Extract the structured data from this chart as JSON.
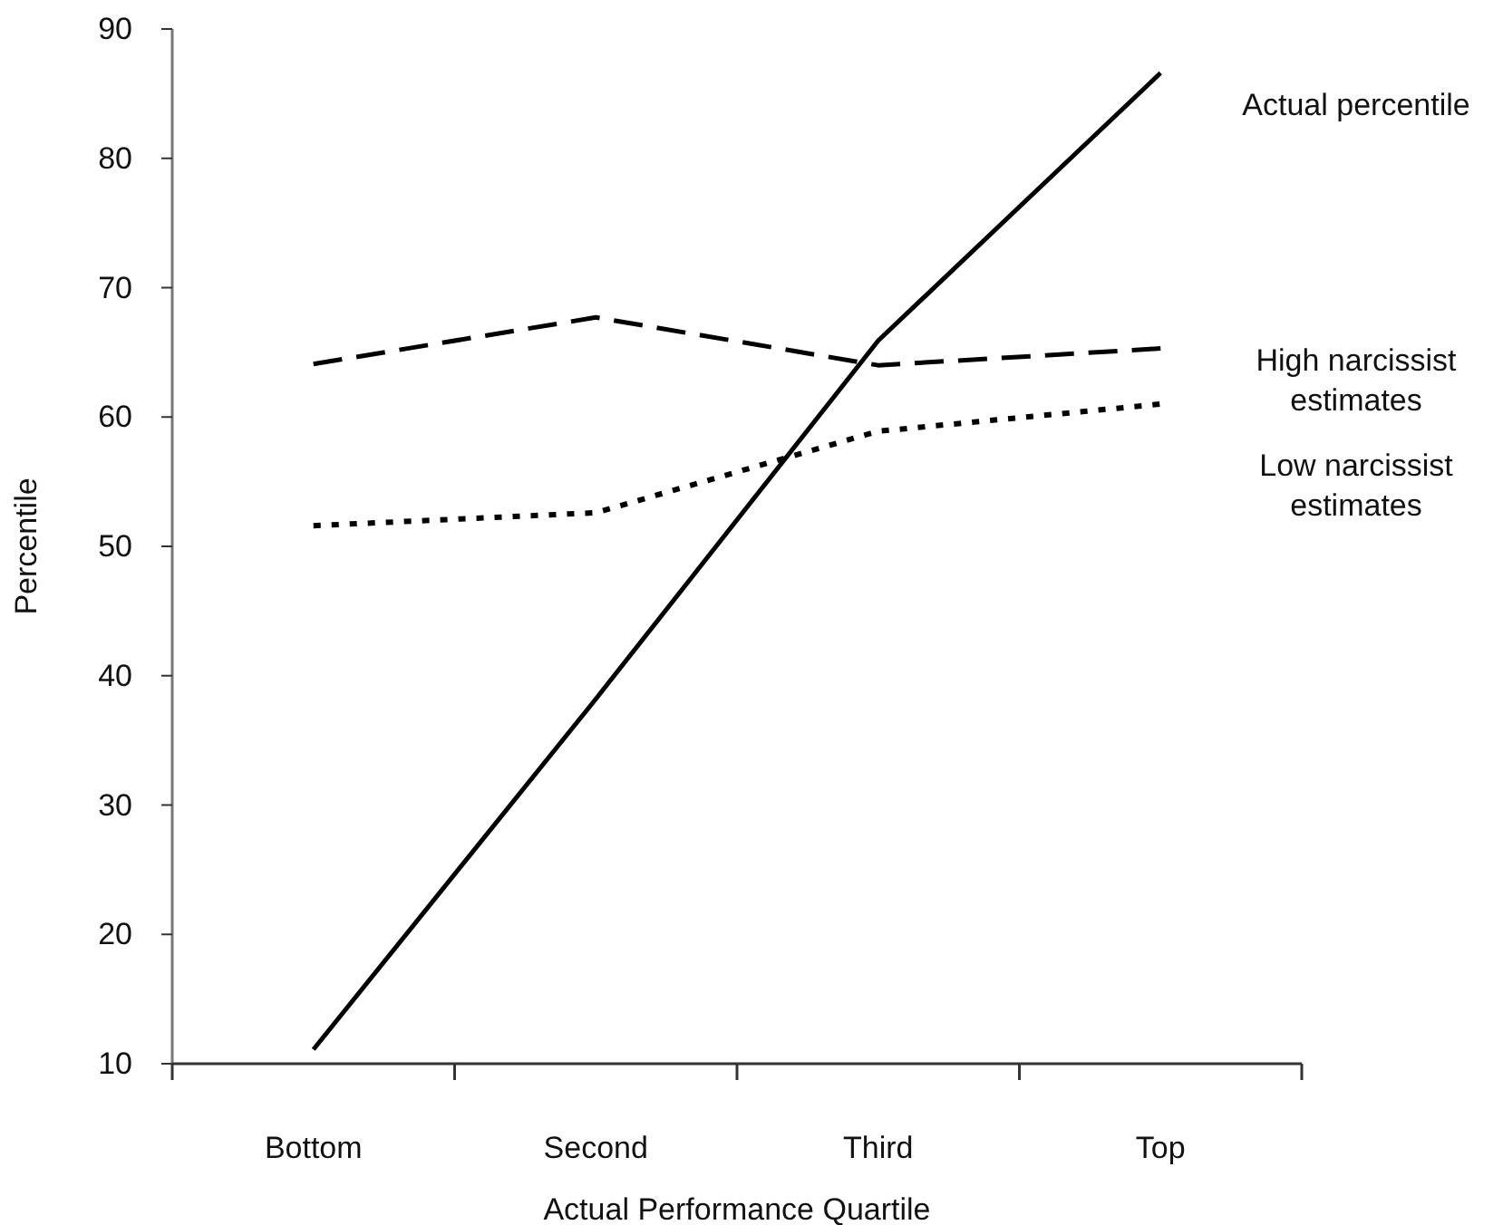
{
  "chart_data": {
    "type": "line",
    "xlabel": "Actual Performance Quartile",
    "ylabel": "Percentile",
    "categories": [
      "Bottom",
      "Second",
      "Third",
      "Top"
    ],
    "ylim": [
      10,
      90
    ],
    "yticks": [
      10,
      20,
      30,
      40,
      50,
      60,
      70,
      80,
      90
    ],
    "series": [
      {
        "name": "Actual percentile",
        "color": "#000000",
        "line_style": "solid",
        "values": [
          11.1,
          38.2,
          65.9,
          86.6
        ]
      },
      {
        "name": "High narcissist estimates",
        "color": "#000000",
        "line_style": "dashed",
        "values": [
          64.1,
          67.7,
          64.0,
          65.3
        ]
      },
      {
        "name": "Low narcissist estimates",
        "color": "#000000",
        "line_style": "dotted",
        "values": [
          51.6,
          52.6,
          58.9,
          61.0
        ]
      }
    ]
  }
}
